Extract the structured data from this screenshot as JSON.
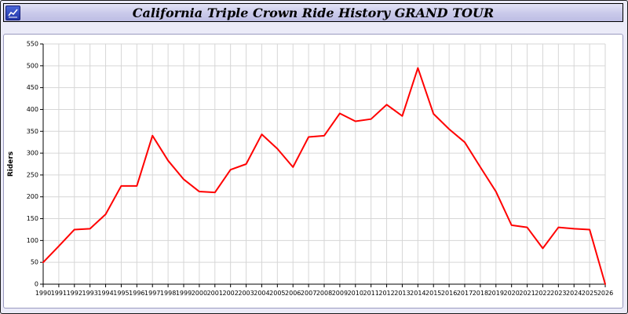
{
  "window": {
    "title": "California Triple Crown Ride History GRAND TOUR",
    "icon": "line-chart-icon"
  },
  "colors": {
    "page_background": "#ebebf8",
    "titlebar_background": "#c9c9ea",
    "panel_background": "#ffffff",
    "series_line": "#ff0000",
    "grid_line": "#d6d6d6",
    "axis_line": "#000000"
  },
  "chart_data": {
    "type": "line",
    "title": "California Triple Crown Ride History GRAND TOUR",
    "xlabel": "",
    "ylabel": "Riders",
    "ylim": [
      0,
      550
    ],
    "ytick_step": 50,
    "grid": true,
    "legend_position": "none",
    "line_color": "#ff0000",
    "grid_color": "#d6d6d6",
    "x": [
      1990,
      1991,
      1992,
      1993,
      1994,
      1995,
      1996,
      1997,
      1998,
      1999,
      2000,
      2001,
      2002,
      2003,
      2004,
      2005,
      2006,
      2007,
      2008,
      2009,
      2010,
      2011,
      2012,
      2013,
      2014,
      2015,
      2016,
      2017,
      2018,
      2019,
      2020,
      2021,
      2022,
      2023,
      2024,
      2025,
      2026
    ],
    "values": [
      50,
      87,
      125,
      127,
      160,
      225,
      225,
      340,
      283,
      240,
      212,
      210,
      262,
      275,
      343,
      310,
      268,
      337,
      340,
      391,
      373,
      378,
      411,
      385,
      495,
      390,
      355,
      325,
      268,
      212,
      135,
      130,
      82,
      130,
      127,
      125,
      0
    ]
  }
}
